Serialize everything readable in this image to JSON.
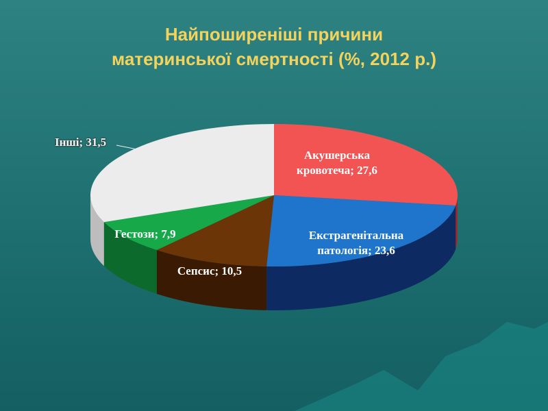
{
  "chart_data": {
    "type": "pie3d",
    "title": "Найпоширеніші причини\nматеринської смертності (%, 2012 р.)",
    "values": [
      27.6,
      23.6,
      10.5,
      7.9,
      31.5
    ],
    "value_labels": [
      "Акушерська кровотеча; 27,6",
      "Екстрагенітальна патологія; 23,6",
      "Сепсис; 10,5",
      "Гестози; 7,9",
      "Інші; 31,5"
    ],
    "colors": [
      "#f25454",
      "#1f74cc",
      "#6b3508",
      "#17a84a",
      "#ececec"
    ],
    "side_colors": [
      "#a02828",
      "#0d2b62",
      "#3a1a02",
      "#0b6a2c",
      "#bdbdbd"
    ]
  }
}
